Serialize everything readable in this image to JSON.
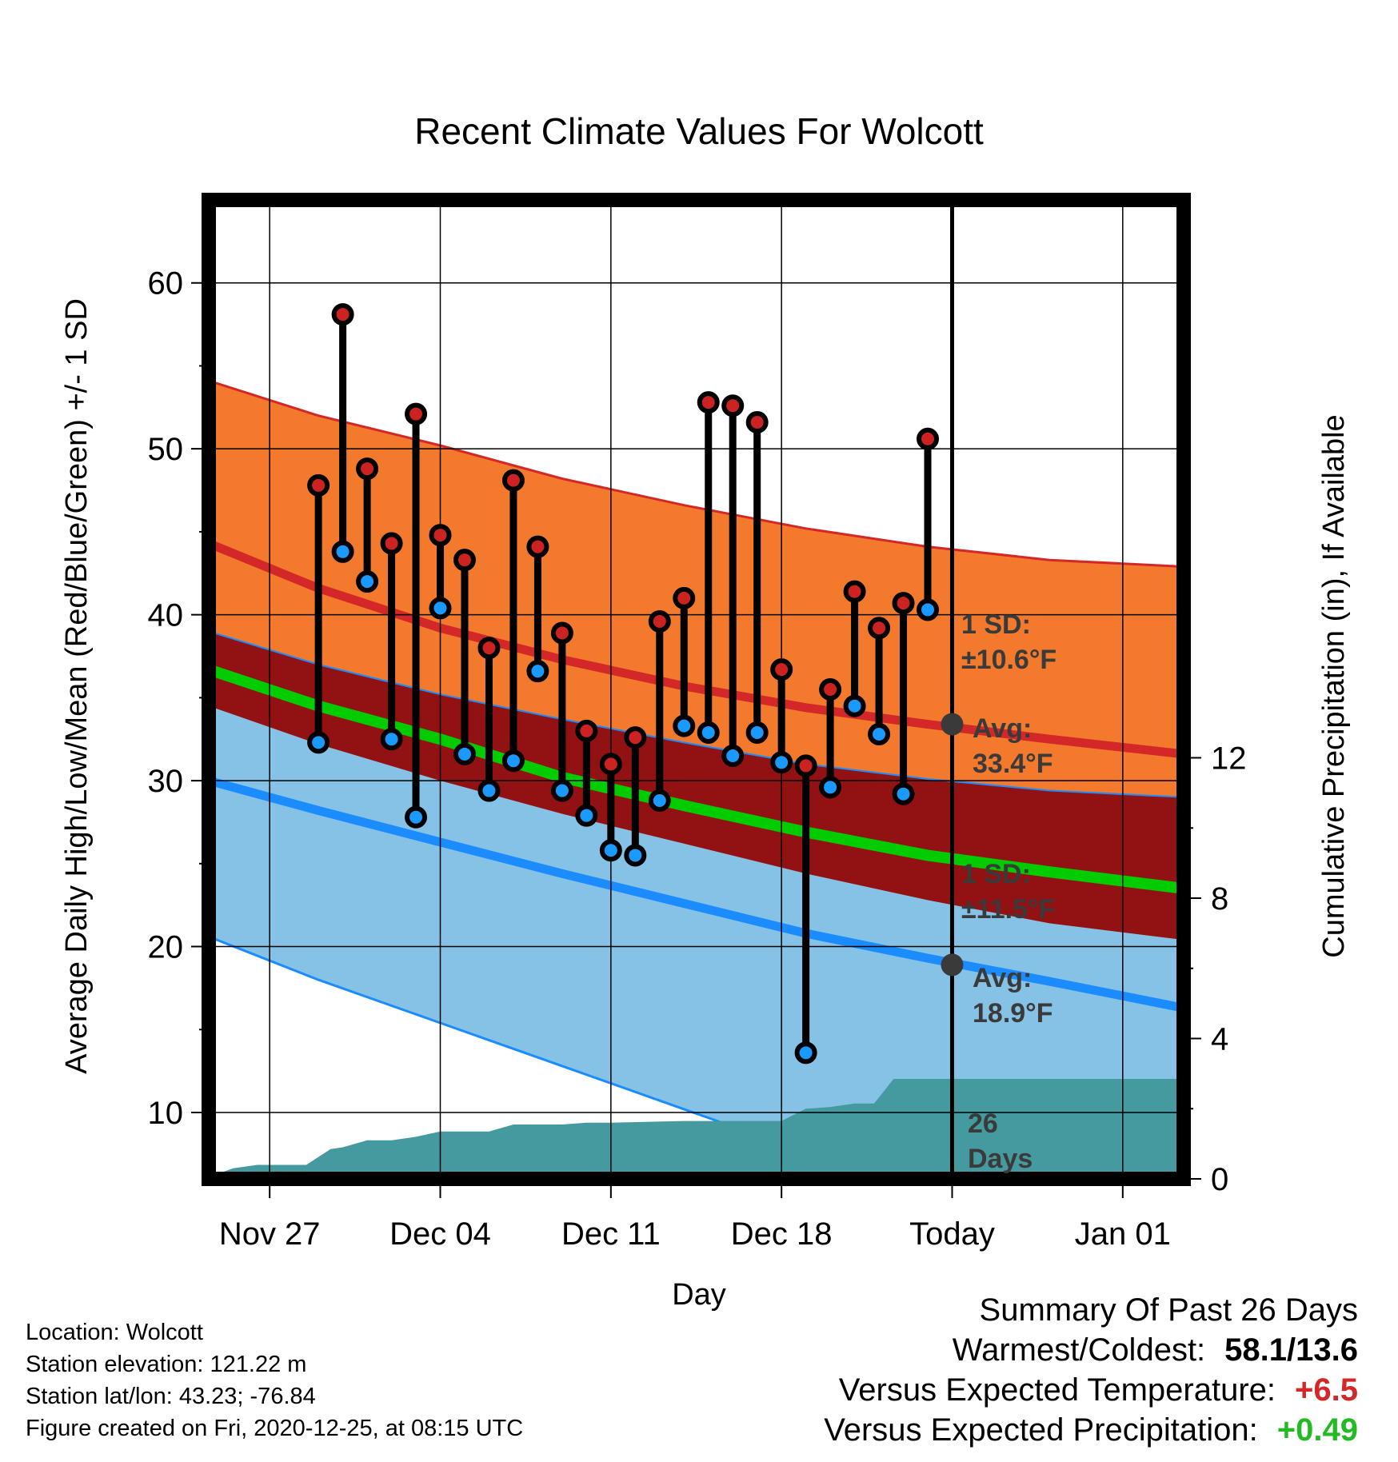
{
  "chart_data": {
    "type": "line",
    "title": "Recent Climate Values For Wolcott",
    "xlabel": "Day",
    "ylabel": "Average Daily High/Low/Mean (Red/Blue/Green) +/- 1 SD",
    "y2label": "Cumulative Precipitation (in), If Available",
    "x_tick_labels": [
      "Nov 27",
      "Dec 04",
      "Dec 11",
      "Dec 18",
      "Today",
      "Jan 01"
    ],
    "x_tick_days": [
      2,
      9,
      16,
      23,
      30,
      37
    ],
    "xlim_days": [
      -0.5,
      39.5
    ],
    "y_ticks": [
      10,
      20,
      30,
      40,
      50,
      60
    ],
    "ylim": [
      6,
      65
    ],
    "y2_ticks": [
      0,
      4,
      8,
      12
    ],
    "y2lim": [
      0,
      27.9
    ],
    "today_day": 30,
    "normal_curves": {
      "days": [
        -0.5,
        4,
        9,
        14,
        19,
        24,
        29,
        34,
        39.5
      ],
      "high_avg": [
        44.3,
        41.6,
        39.2,
        37.3,
        35.7,
        34.4,
        33.4,
        32.5,
        31.6
      ],
      "high_sd_upper": [
        54.1,
        52.0,
        50.2,
        48.2,
        46.6,
        45.2,
        44.1,
        43.3,
        42.9
      ],
      "high_sd_lower": [
        39.0,
        37.0,
        35.2,
        33.7,
        32.3,
        31.0,
        30.1,
        29.4,
        29.0
      ],
      "mean": [
        36.7,
        34.5,
        32.5,
        30.2,
        28.5,
        26.9,
        25.5,
        24.5,
        23.5
      ],
      "low_avg": [
        30.0,
        28.2,
        26.3,
        24.4,
        22.6,
        20.8,
        19.3,
        17.9,
        16.3
      ],
      "low_sd_upper": [
        34.5,
        32.2,
        30.0,
        28.0,
        26.2,
        24.4,
        22.8,
        21.4,
        20.4
      ],
      "low_sd_lower": [
        20.6,
        18.0,
        15.4,
        12.8,
        10.2,
        7.6,
        5.0,
        3.0,
        1.0
      ]
    },
    "observations": {
      "days": [
        4,
        5,
        6,
        7,
        8,
        9,
        10,
        11,
        12,
        13,
        14,
        15,
        16,
        17,
        18,
        19,
        20,
        21,
        22,
        23,
        24,
        25,
        26,
        27,
        28,
        29
      ],
      "highs": [
        47.8,
        58.1,
        48.8,
        44.3,
        52.1,
        44.8,
        43.3,
        38.0,
        48.1,
        44.1,
        38.9,
        33.0,
        31.0,
        32.6,
        39.6,
        41.0,
        52.8,
        52.6,
        51.6,
        36.7,
        30.9,
        35.5,
        41.4,
        39.2,
        40.7,
        50.6
      ],
      "lows": [
        32.3,
        43.8,
        42.0,
        32.5,
        27.8,
        40.4,
        31.6,
        29.4,
        31.2,
        36.6,
        29.4,
        27.9,
        25.8,
        25.5,
        28.8,
        33.3,
        32.9,
        31.5,
        32.9,
        31.1,
        13.6,
        29.6,
        34.5,
        32.8,
        29.2,
        40.3
      ]
    },
    "precip_cumulative": {
      "days": [
        -0.5,
        0.5,
        1.5,
        3.5,
        4.5,
        5.0,
        6.0,
        7.0,
        8.0,
        9.0,
        11.0,
        12.0,
        14.0,
        15.0,
        16.0,
        19.0,
        20.0,
        23.0,
        24.0,
        25.0,
        26.0,
        26.8,
        27.6,
        29.5,
        39.5
      ],
      "values": [
        0.05,
        0.3,
        0.4,
        0.4,
        0.85,
        0.9,
        1.1,
        1.1,
        1.2,
        1.35,
        1.35,
        1.55,
        1.55,
        1.6,
        1.6,
        1.65,
        1.65,
        1.65,
        2.0,
        2.05,
        2.15,
        2.15,
        2.85,
        2.85,
        2.85
      ]
    },
    "annotations": {
      "high_sd_label_1": "1 SD:",
      "high_sd_label_2": "±10.6°F",
      "high_avg_label_1": "Avg:",
      "high_avg_label_2": "33.4°F",
      "low_sd_label_1": "1 SD:",
      "low_sd_label_2": "±11.5°F",
      "low_avg_label_1": "Avg:",
      "low_avg_label_2": "18.9°F",
      "days_label_1": "26",
      "days_label_2": "Days"
    },
    "colors": {
      "high_band": "#f37a2d",
      "high_line": "#d42727",
      "mean_band": "#921113",
      "mean_line": "#00cc00",
      "low_band": "#85c2e6",
      "low_line": "#1a8cff",
      "precip": "#459aa0",
      "high_marker": "#cc2222",
      "low_marker": "#1a99ff"
    }
  },
  "footer": {
    "location": "Location: Wolcott",
    "elevation": "Station elevation: 121.22 m",
    "latlon": "Station lat/lon: 43.23; -76.84",
    "created": "Figure created on Fri, 2020-12-25, at 08:15 UTC"
  },
  "summary": {
    "title": "Summary Of Past 26 Days",
    "warmest_coldest_label": "Warmest/Coldest:",
    "warmest_coldest_value": "58.1/13.6",
    "temp_label": "Versus Expected Temperature:",
    "temp_value": "+6.5",
    "temp_color": "#d42727",
    "precip_label": "Versus Expected Precipitation:",
    "precip_value": "+0.49",
    "precip_color": "#22bb22"
  }
}
